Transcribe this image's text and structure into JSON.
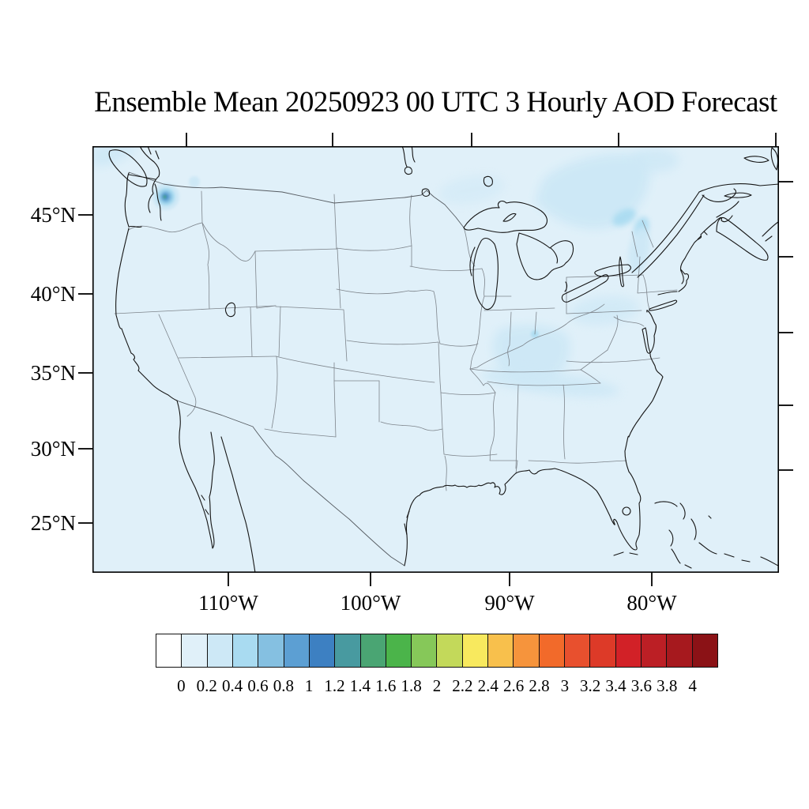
{
  "title": "Ensemble Mean 20250923 00 UTC 3 Hourly AOD Forecast",
  "map": {
    "lat_axis": {
      "labels": [
        "45°N",
        "40°N",
        "35°N",
        "30°N",
        "25°N"
      ]
    },
    "lon_axis": {
      "labels": [
        "110°W",
        "100°W",
        "90°W",
        "80°W"
      ]
    }
  },
  "colorbar": {
    "tick_labels": [
      "0",
      "0.2",
      "0.4",
      "0.6",
      "0.8",
      "1",
      "1.2",
      "1.4",
      "1.6",
      "1.8",
      "2",
      "2.2",
      "2.4",
      "2.6",
      "2.8",
      "3",
      "3.2",
      "3.4",
      "3.6",
      "3.8",
      "4"
    ],
    "colors": [
      "#ffffff",
      "#e0f0f9",
      "#cde8f6",
      "#a9dbf1",
      "#85c0e1",
      "#5c9fd3",
      "#3d80c2",
      "#489aa0",
      "#4aa573",
      "#4bb44a",
      "#86c859",
      "#c3d95a",
      "#f8e95e",
      "#f8c04c",
      "#f6943c",
      "#f26a2a",
      "#e8502e",
      "#dd3a28",
      "#d22127",
      "#bc1f25",
      "#a6191e",
      "#8b1216"
    ]
  },
  "chart_data": {
    "type": "heatmap",
    "title": "Ensemble Mean 20250923 00 UTC 3 Hourly AOD Forecast",
    "region": "Contiguous United States (Lambert conformal view)",
    "variable": "Aerosol Optical Depth (AOD), ensemble mean, 3-hourly forecast",
    "lat_tick_labels": [
      "45°N",
      "40°N",
      "35°N",
      "30°N",
      "25°N"
    ],
    "lon_tick_labels": [
      "110°W",
      "100°W",
      "90°W",
      "80°W"
    ],
    "colorbar_levels": [
      0,
      0.2,
      0.4,
      0.6,
      0.8,
      1,
      1.2,
      1.4,
      1.6,
      1.8,
      2,
      2.2,
      2.4,
      2.6,
      2.8,
      3,
      3.2,
      3.4,
      3.6,
      3.8,
      4
    ],
    "colorbar_range": [
      0,
      4
    ],
    "background_aod": 0.1,
    "features": [
      {
        "region": "central Washington state",
        "lat": 47.5,
        "lon": -120.3,
        "aod_peak": 1.7,
        "note": "compact smoke-plume maximum with concentric contours (0.2→1.6)"
      },
      {
        "region": "northeast Washington",
        "lat": 48.6,
        "lon": -118.5,
        "aod": 0.3,
        "note": "small secondary patch"
      },
      {
        "region": "southern Quebec / Ontario band",
        "aod": 0.4,
        "note": "diagonal light plume from Georgian Bay toward the St. Lawrence"
      },
      {
        "region": "Vermont / upstate New York",
        "aod": 0.4
      },
      {
        "region": "Pennsylvania",
        "aod": 0.3
      },
      {
        "region": "Indiana / Ohio valley",
        "aod": 0.3,
        "note": "broad faint patch, small 0.4 core over central Ohio"
      },
      {
        "region": "Kentucky / Tennessee band",
        "aod": 0.3
      },
      {
        "region": "northern Minnesota / border lakes",
        "aod": 0.2
      },
      {
        "region": "northwest map corner (Pacific, off Vancouver Island)",
        "aod": 0.3
      }
    ]
  }
}
